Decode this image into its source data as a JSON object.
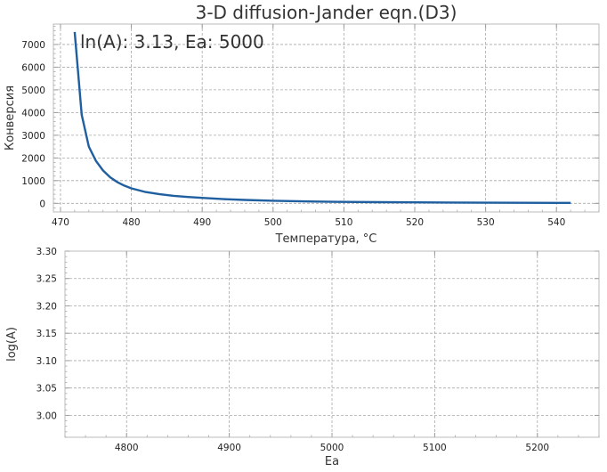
{
  "chart_data": [
    {
      "type": "line",
      "title": "3-D diffusion-Jander eqn.(D3)",
      "annotation": "ln(A): 3.13, Ea: 5000",
      "xlabel": "Температура, °C",
      "ylabel": "Конверсия",
      "xlim": [
        469,
        546
      ],
      "ylim": [
        -380,
        7900
      ],
      "xticks": [
        470,
        480,
        490,
        500,
        510,
        520,
        530,
        540
      ],
      "yticks": [
        0,
        1000,
        2000,
        3000,
        4000,
        5000,
        6000,
        7000
      ],
      "grid": true,
      "line_color": "#1f5fa0",
      "series": [
        {
          "x": [
            472,
            473,
            474,
            475,
            476,
            477,
            478,
            479,
            480,
            482,
            484,
            486,
            488,
            490,
            493,
            496,
            500,
            505,
            510,
            515,
            520,
            525,
            530,
            535,
            540,
            542
          ],
          "y": [
            7550,
            3900,
            2500,
            1870,
            1450,
            1150,
            940,
            780,
            660,
            500,
            400,
            330,
            280,
            240,
            185,
            150,
            115,
            85,
            65,
            52,
            42,
            35,
            29,
            25,
            21,
            20
          ]
        }
      ]
    },
    {
      "type": "scatter",
      "xlabel": "Ea",
      "ylabel": "log(A)",
      "xlim": [
        4740,
        5260
      ],
      "ylim": [
        2.96,
        3.3
      ],
      "xticks": [
        4800,
        4900,
        5000,
        5100,
        5200
      ],
      "yticks": [
        3.0,
        3.05,
        3.1,
        3.15,
        3.2,
        3.25,
        3.3
      ],
      "ytick_labels": [
        "3.00",
        "3.05",
        "3.10",
        "3.15",
        "3.20",
        "3.25",
        "3.30"
      ],
      "grid": true,
      "series": []
    }
  ]
}
